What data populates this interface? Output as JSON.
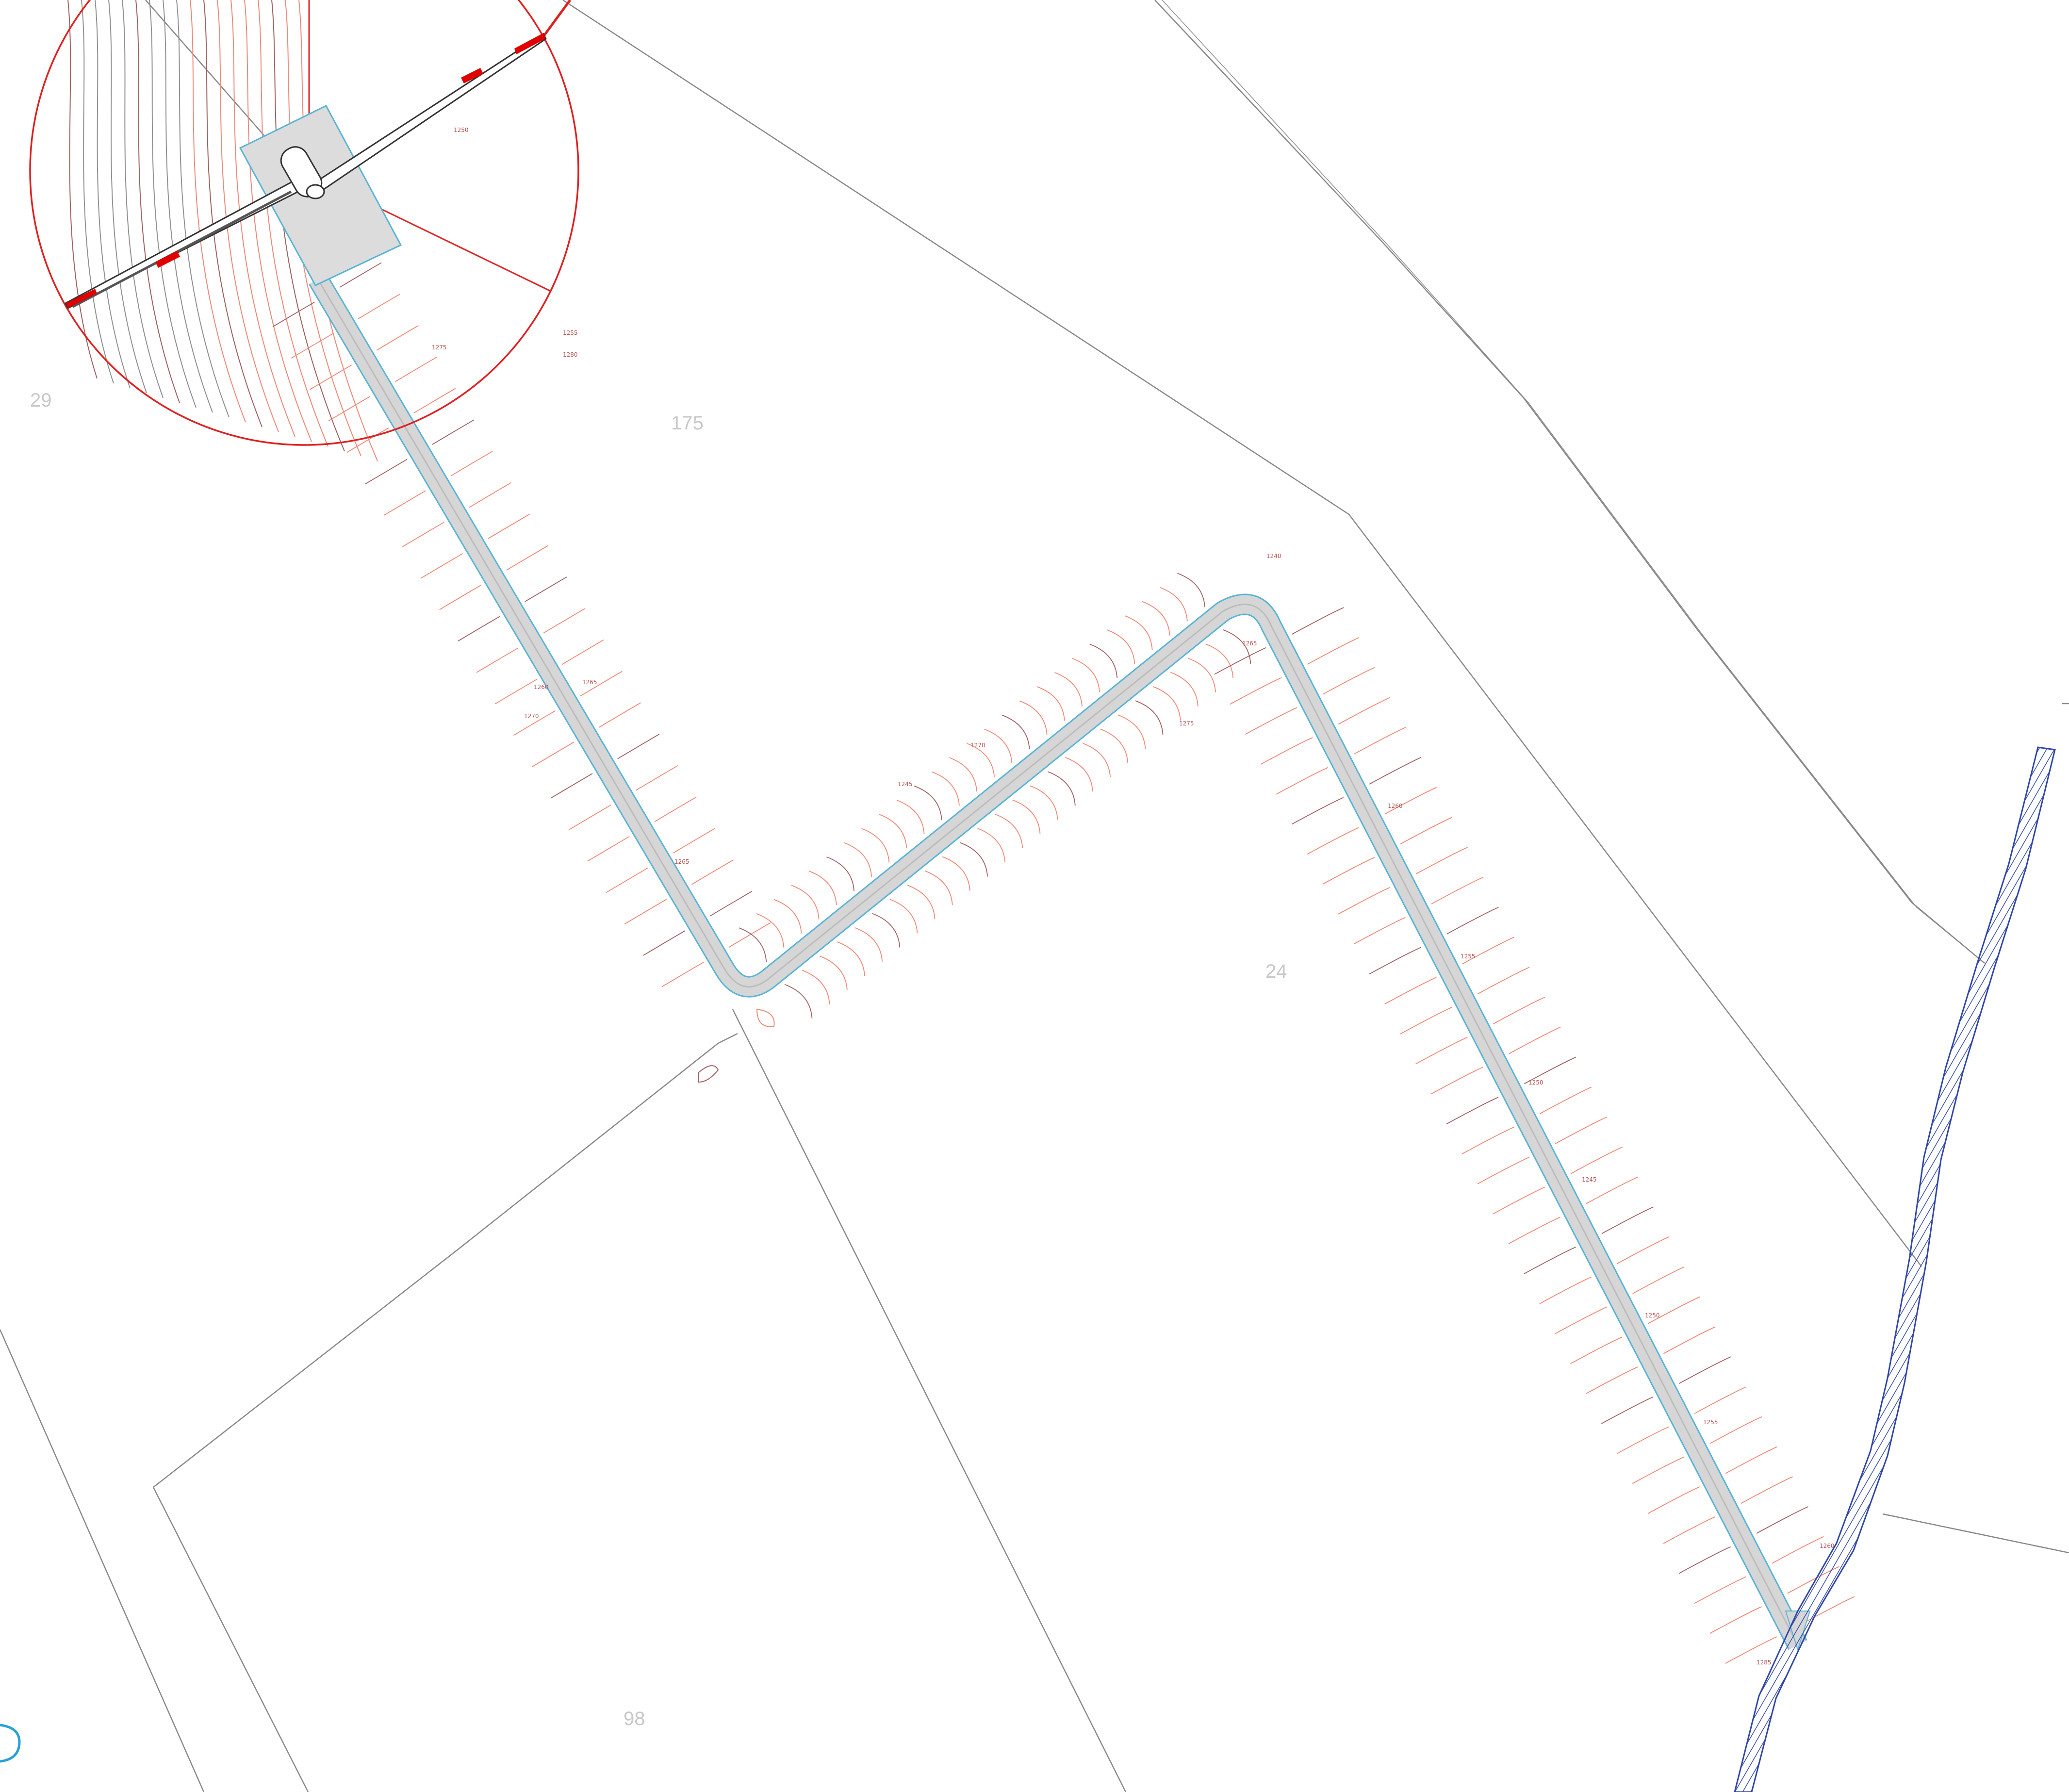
{
  "map": {
    "parcel_labels": [
      "29",
      "175",
      "24",
      "98"
    ],
    "contour_labels": [
      "1250",
      "1255",
      "1260",
      "1265",
      "1270",
      "1275",
      "1245",
      "1240",
      "1265",
      "1260",
      "1255",
      "1250",
      "1245",
      "1250",
      "1255",
      "1260",
      "1265",
      "1270",
      "1275",
      "1280",
      "1285"
    ],
    "colors": {
      "parcel_line": "#8a8a8a",
      "contour_major": "#a06060",
      "contour_minor": "#f08878",
      "road_edge": "#5ab4d6",
      "road_fill": "#d6d6d6",
      "rotor_circle": "#e02020",
      "blade_tip": "#e00000",
      "watercourse": "#3046a8",
      "corner_mark": "#28a0d8"
    },
    "symbols": {
      "turbine": "wind-turbine-icon",
      "rotor_area": "rotor-swept-circle",
      "watercourse": "hatched-stream"
    }
  }
}
